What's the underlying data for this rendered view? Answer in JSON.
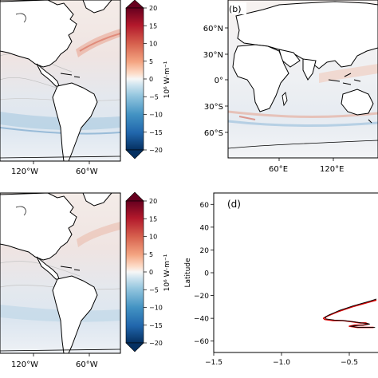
{
  "chart_data": [
    {
      "type": "heatmap",
      "panel": "a",
      "region": "Atlantic and Americas",
      "xticks": [
        "120°W",
        "60°W"
      ],
      "colorbar": {
        "label": "10⁶ W·m⁻¹",
        "ticks": [
          20,
          15,
          10,
          5,
          0,
          -5,
          -10,
          -15,
          -20
        ],
        "range": [
          -20,
          20
        ],
        "colormap": "diverging blue-white-red"
      }
    },
    {
      "type": "heatmap",
      "panel": "b",
      "panel_label": "(b)",
      "region": "Eastern Hemisphere",
      "xticks": [
        "60°E",
        "120°E"
      ],
      "yticks": [
        "60°N",
        "30°N",
        "0°",
        "30°S",
        "60°S"
      ]
    },
    {
      "type": "heatmap",
      "panel": "c",
      "region": "Atlantic and Americas",
      "xticks": [
        "120°W",
        "60°W"
      ],
      "colorbar": {
        "label": "10⁶ W·m⁻¹",
        "ticks": [
          20,
          15,
          10,
          5,
          0,
          -5,
          -10,
          -15,
          -20
        ],
        "range": [
          -20,
          20
        ],
        "colormap": "diverging blue-white-red"
      }
    },
    {
      "type": "line",
      "panel": "d",
      "panel_label": "(d)",
      "ylabel": "Latitude",
      "xlim": [
        -1.5,
        -0.3
      ],
      "ylim": [
        -70,
        70
      ],
      "xticks": [
        "-1.5",
        "-1.0",
        "-0.5"
      ],
      "yticks": [
        "60",
        "40",
        "20",
        "0",
        "-20",
        "-40",
        "-60"
      ],
      "series": [
        {
          "color": "#d40000",
          "x": [
            -0.3,
            -0.36,
            -0.42,
            -0.48,
            -0.53,
            -0.58,
            -0.62,
            -0.66,
            -0.69,
            -0.68,
            -0.62,
            -0.55,
            -0.48,
            -0.42,
            -0.38,
            -0.36,
            -0.4,
            -0.46,
            -0.5,
            -0.44,
            -0.38,
            -0.32
          ],
          "y": [
            -24,
            -26,
            -28,
            -30,
            -32,
            -34,
            -36,
            -38,
            -40,
            -41,
            -42,
            -42,
            -43,
            -44,
            -44,
            -45,
            -46,
            -46,
            -47,
            -48,
            -48,
            -48
          ]
        },
        {
          "color": "#000000",
          "x": [
            -0.3,
            -0.35,
            -0.41,
            -0.47,
            -0.52,
            -0.57,
            -0.61,
            -0.65,
            -0.68,
            -0.67,
            -0.61,
            -0.54,
            -0.47,
            -0.41,
            -0.37,
            -0.35,
            -0.39,
            -0.45,
            -0.49,
            -0.43,
            -0.37,
            -0.31
          ],
          "y": [
            -23,
            -25,
            -27,
            -29,
            -31,
            -33,
            -35,
            -37,
            -39,
            -40.5,
            -41.5,
            -42,
            -43,
            -44,
            -44.5,
            -45,
            -46,
            -46.5,
            -47,
            -48,
            -48,
            -48
          ]
        }
      ]
    }
  ]
}
